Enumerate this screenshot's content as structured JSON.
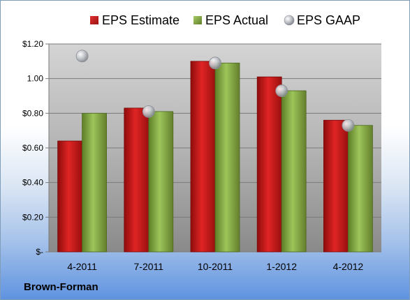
{
  "company": "Brown-Forman",
  "chart_data": {
    "type": "bar",
    "categories": [
      "4-2011",
      "7-2011",
      "10-2011",
      "1-2012",
      "4-2012"
    ],
    "series": [
      {
        "name": "EPS Estimate",
        "kind": "bar",
        "color": "#d11a1a",
        "values": [
          0.64,
          0.83,
          1.1,
          1.01,
          0.76
        ]
      },
      {
        "name": "EPS Actual",
        "kind": "bar",
        "color": "#8db34a",
        "values": [
          0.8,
          0.81,
          1.09,
          0.93,
          0.73
        ]
      },
      {
        "name": "EPS GAAP",
        "kind": "marker",
        "color": "#b8bcc4",
        "values": [
          1.13,
          0.81,
          1.09,
          0.93,
          0.73
        ]
      }
    ],
    "y_ticks": [
      {
        "value": 0,
        "label": "$-"
      },
      {
        "value": 0.2,
        "label": "$0.20"
      },
      {
        "value": 0.4,
        "label": "$0.40"
      },
      {
        "value": 0.6,
        "label": "$0.60"
      },
      {
        "value": 0.8,
        "label": "$0.80"
      },
      {
        "value": 1.0,
        "label": "1.00"
      },
      {
        "value": 1.2,
        "label": "$1.20"
      }
    ],
    "ylim": [
      0,
      1.2
    ],
    "grid": true,
    "legend_position": "top"
  }
}
